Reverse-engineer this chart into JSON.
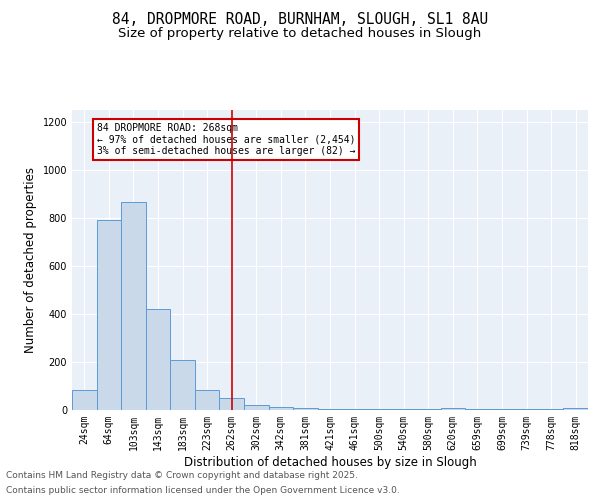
{
  "title1": "84, DROPMORE ROAD, BURNHAM, SLOUGH, SL1 8AU",
  "title2": "Size of property relative to detached houses in Slough",
  "xlabel": "Distribution of detached houses by size in Slough",
  "ylabel": "Number of detached properties",
  "categories": [
    "24sqm",
    "64sqm",
    "103sqm",
    "143sqm",
    "183sqm",
    "223sqm",
    "262sqm",
    "302sqm",
    "342sqm",
    "381sqm",
    "421sqm",
    "461sqm",
    "500sqm",
    "540sqm",
    "580sqm",
    "620sqm",
    "659sqm",
    "699sqm",
    "739sqm",
    "778sqm",
    "818sqm"
  ],
  "values": [
    85,
    790,
    865,
    420,
    210,
    85,
    50,
    20,
    12,
    8,
    5,
    5,
    5,
    5,
    5,
    10,
    5,
    5,
    5,
    5,
    10
  ],
  "bar_color": "#c9d9ea",
  "bar_edge_color": "#5b9bd5",
  "vline_x": 6,
  "vline_color": "#cc0000",
  "annotation_title": "84 DROPMORE ROAD: 268sqm",
  "annotation_line1": "← 97% of detached houses are smaller (2,454)",
  "annotation_line2": "3% of semi-detached houses are larger (82) →",
  "annotation_box_color": "#cc0000",
  "annotation_bg": "#ffffff",
  "ylim": [
    0,
    1250
  ],
  "yticks": [
    0,
    200,
    400,
    600,
    800,
    1000,
    1200
  ],
  "footer1": "Contains HM Land Registry data © Crown copyright and database right 2025.",
  "footer2": "Contains public sector information licensed under the Open Government Licence v3.0.",
  "bg_color": "#eaf0f8",
  "title_fontsize": 10.5,
  "subtitle_fontsize": 9.5,
  "axis_label_fontsize": 8.5,
  "tick_fontsize": 7,
  "footer_fontsize": 6.5
}
